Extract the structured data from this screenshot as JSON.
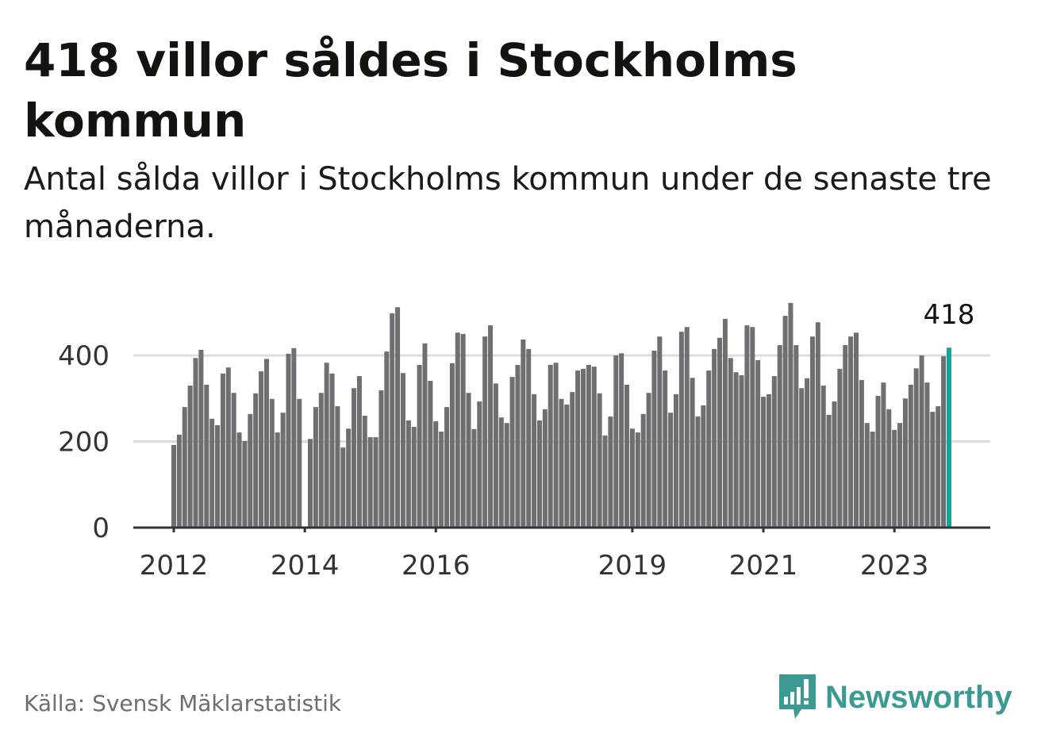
{
  "title": "418 villor såldes i Stockholms kommun",
  "subtitle": "Antal sålda villor i Stockholms kommun under de senaste tre månaderna.",
  "source": "Källa: Svensk Mäklarstatistik",
  "logo": "Newsworthy",
  "colors": {
    "bar": "#6f6e73",
    "highlight": "#12a59c",
    "logo": "#3d9a93"
  },
  "chart_data": {
    "type": "bar",
    "title": "418 villor såldes i Stockholms kommun",
    "xlabel": "",
    "ylabel": "",
    "ylim": [
      0,
      520
    ],
    "start_month": "2012-01",
    "end_month": "2023-11",
    "yticks": [
      0,
      200,
      400
    ],
    "ytick_labels": [
      "0",
      "200",
      "400"
    ],
    "xticks": [
      {
        "label": "2012",
        "month_index": 0
      },
      {
        "label": "2014",
        "month_index": 24
      },
      {
        "label": "2016",
        "month_index": 48
      },
      {
        "label": "2019",
        "month_index": 84
      },
      {
        "label": "2021",
        "month_index": 108
      },
      {
        "label": "2023",
        "month_index": 132
      }
    ],
    "grid": true,
    "highlight_label": "418",
    "values": [
      192,
      216,
      280,
      330,
      394,
      413,
      332,
      253,
      238,
      358,
      372,
      313,
      221,
      201,
      264,
      312,
      363,
      392,
      299,
      221,
      267,
      404,
      417,
      299,
      null,
      206,
      280,
      313,
      383,
      358,
      282,
      186,
      230,
      324,
      352,
      260,
      210,
      210,
      319,
      409,
      498,
      512,
      359,
      249,
      234,
      378,
      428,
      341,
      247,
      223,
      280,
      382,
      453,
      450,
      313,
      229,
      293,
      444,
      470,
      335,
      256,
      243,
      350,
      378,
      437,
      415,
      310,
      249,
      275,
      378,
      383,
      299,
      286,
      315,
      365,
      369,
      378,
      374,
      312,
      214,
      258,
      400,
      405,
      332,
      230,
      221,
      264,
      313,
      411,
      444,
      365,
      267,
      310,
      455,
      466,
      348,
      258,
      284,
      365,
      415,
      441,
      485,
      394,
      361,
      354,
      470,
      466,
      389,
      304,
      310,
      352,
      424,
      492,
      522,
      424,
      324,
      347,
      444,
      477,
      330,
      262,
      293,
      369,
      424,
      444,
      453,
      343,
      243,
      223,
      306,
      337,
      275,
      227,
      243,
      300,
      332,
      370,
      400,
      337,
      269,
      282,
      398,
      418
    ]
  }
}
